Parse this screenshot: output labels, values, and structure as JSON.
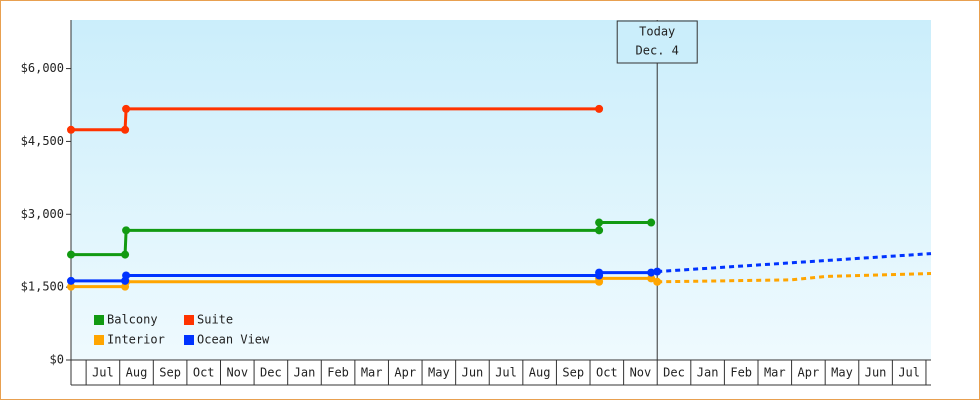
{
  "chart_data": {
    "type": "line",
    "ylim": [
      0,
      7000
    ],
    "yticks": [
      {
        "value": 0,
        "label": "$0"
      },
      {
        "value": 1500,
        "label": "$1,500"
      },
      {
        "value": 3000,
        "label": "$3,000"
      },
      {
        "value": 4500,
        "label": "$4,500"
      },
      {
        "value": 6000,
        "label": "$6,000"
      }
    ],
    "xlim": [
      -0.45,
      25.15
    ],
    "xticks": [
      {
        "value": 0.5,
        "label": "Jul"
      },
      {
        "value": 1.5,
        "label": "Aug"
      },
      {
        "value": 2.5,
        "label": "Sep"
      },
      {
        "value": 3.5,
        "label": "Oct"
      },
      {
        "value": 4.5,
        "label": "Nov"
      },
      {
        "value": 5.5,
        "label": "Dec"
      },
      {
        "value": 6.5,
        "label": "Jan"
      },
      {
        "value": 7.5,
        "label": "Feb"
      },
      {
        "value": 8.5,
        "label": "Mar"
      },
      {
        "value": 9.5,
        "label": "Apr"
      },
      {
        "value": 10.5,
        "label": "May"
      },
      {
        "value": 11.5,
        "label": "Jun"
      },
      {
        "value": 12.5,
        "label": "Jul"
      },
      {
        "value": 13.5,
        "label": "Aug"
      },
      {
        "value": 14.5,
        "label": "Sep"
      },
      {
        "value": 15.5,
        "label": "Oct"
      },
      {
        "value": 16.5,
        "label": "Nov"
      },
      {
        "value": 17.5,
        "label": "Dec"
      },
      {
        "value": 18.5,
        "label": "Jan"
      },
      {
        "value": 19.5,
        "label": "Feb"
      },
      {
        "value": 20.5,
        "label": "Mar"
      },
      {
        "value": 21.5,
        "label": "Apr"
      },
      {
        "value": 22.5,
        "label": "May"
      },
      {
        "value": 23.5,
        "label": "Jun"
      },
      {
        "value": 24.5,
        "label": "Jul"
      }
    ],
    "series": [
      {
        "name": "Balcony",
        "color": "#129a12",
        "x": [
          -0.45,
          1.16,
          1.19,
          15.27,
          15.27,
          16.82
        ],
        "values": [
          2170,
          2170,
          2670,
          2670,
          2830,
          2830
        ]
      },
      {
        "name": "Suite",
        "color": "#ff3300",
        "x": [
          -0.45,
          1.16,
          1.19,
          15.27
        ],
        "values": [
          4740,
          4740,
          5170,
          5170
        ]
      },
      {
        "name": "Interior",
        "color": "#ffa500",
        "x": [
          -0.45,
          1.16,
          1.19,
          15.27,
          15.27,
          16.82,
          17.0
        ],
        "values": [
          1510,
          1510,
          1610,
          1610,
          1680,
          1680,
          1610
        ],
        "forecast": {
          "x": [
            17.0,
            21.0,
            22.0,
            25.15
          ],
          "values": [
            1610,
            1650,
            1720,
            1780
          ]
        }
      },
      {
        "name": "Ocean View",
        "color": "#0033ff",
        "x": [
          -0.45,
          1.16,
          1.19,
          15.27,
          15.27,
          16.82,
          17.0
        ],
        "values": [
          1630,
          1630,
          1740,
          1740,
          1800,
          1800,
          1820
        ],
        "forecast": {
          "x": [
            17.0,
            25.15
          ],
          "values": [
            1820,
            2190
          ]
        }
      }
    ],
    "annotation": {
      "x": 17.0,
      "lines": [
        "Today",
        "Dec. 4"
      ]
    },
    "legend": "lower-left"
  }
}
